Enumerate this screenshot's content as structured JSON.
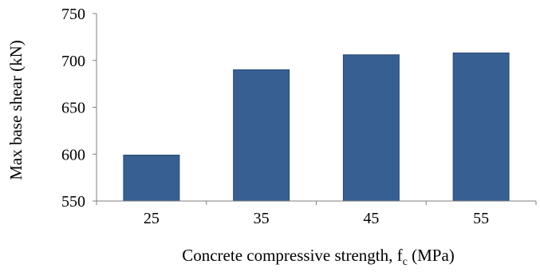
{
  "chart_data": {
    "type": "bar",
    "categories": [
      "25",
      "35",
      "45",
      "55"
    ],
    "values": [
      599,
      690,
      706,
      708
    ],
    "title": "",
    "xlabel_main": "Concrete compressive strength, f",
    "xlabel_sub": "c",
    "xlabel_tail": " (MPa)",
    "ylabel": "Max  base shear (kN)",
    "ylim": [
      550,
      750
    ],
    "yticks": [
      550,
      600,
      650,
      700,
      750
    ],
    "grid": false,
    "legend": "none",
    "bar_color": "#375f92",
    "bar_edge_color": "#2a4a73"
  }
}
